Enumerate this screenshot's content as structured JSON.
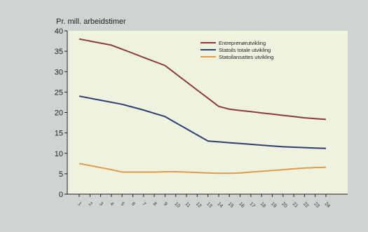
{
  "chart_data": {
    "type": "line",
    "title": "",
    "ylabel": "Pr. mill. arbeidstimer",
    "xlabel": "",
    "ylim": [
      0,
      40
    ],
    "yticks": [
      0,
      5,
      10,
      15,
      20,
      25,
      30,
      35,
      40
    ],
    "x": [
      "1",
      "2",
      "3",
      "4",
      "5",
      "6",
      "7",
      "8",
      "9",
      "10",
      "11",
      "12",
      "13",
      "14",
      "15",
      "16",
      "17",
      "18",
      "19",
      "20",
      "21",
      "22",
      "23",
      "24"
    ],
    "x_tick_note": "tick labels are printed rotated and are not legible in the source",
    "series": [
      {
        "name": "Entreprenørutvikling",
        "color": "#8e3a3e",
        "values": [
          38,
          37.5,
          37,
          36.5,
          35.5,
          34.5,
          33.5,
          32.5,
          31.5,
          29.5,
          27.5,
          25.5,
          23.5,
          21.5,
          20.8,
          20.5,
          20.2,
          19.9,
          19.6,
          19.3,
          19,
          18.7,
          18.5,
          18.3
        ]
      },
      {
        "name": "Statoils totale utvikling",
        "color": "#2f3e73",
        "values": [
          24,
          23.5,
          23,
          22.5,
          22,
          21.3,
          20.6,
          19.8,
          19,
          17.5,
          16,
          14.5,
          13,
          12.8,
          12.6,
          12.4,
          12.2,
          12,
          11.8,
          11.6,
          11.5,
          11.4,
          11.3,
          11.2
        ]
      },
      {
        "name": "Statoilansattes utvikling",
        "color": "#e29b48",
        "values": [
          7.5,
          7,
          6.5,
          6,
          5.4,
          5.4,
          5.4,
          5.4,
          5.5,
          5.5,
          5.4,
          5.3,
          5.2,
          5.1,
          5.1,
          5.2,
          5.4,
          5.6,
          5.8,
          6,
          6.2,
          6.4,
          6.5,
          6.6
        ]
      }
    ],
    "legend": "top-right",
    "grid": false,
    "colors": {
      "plot_background": "#eef3df",
      "panel_background": "#cfd4d2",
      "axis": "#222222"
    }
  }
}
